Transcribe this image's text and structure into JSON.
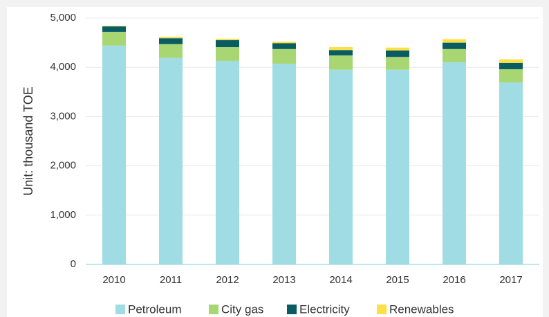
{
  "chart_data": {
    "type": "stacked_bar",
    "y_label": "Unit: thousand TOE",
    "categories": [
      "2010",
      "2011",
      "2012",
      "2013",
      "2014",
      "2015",
      "2016",
      "2017"
    ],
    "series": [
      {
        "name": "Petroleum",
        "color": "#9fdce4",
        "values": [
          4440,
          4190,
          4130,
          4070,
          3950,
          3950,
          4100,
          3690
        ]
      },
      {
        "name": "City gas",
        "color": "#a8d672",
        "values": [
          280,
          280,
          280,
          300,
          290,
          260,
          270,
          270
        ]
      },
      {
        "name": "Electricity",
        "color": "#0a5c63",
        "values": [
          110,
          120,
          140,
          120,
          110,
          130,
          130,
          130
        ]
      },
      {
        "name": "Renewables",
        "color": "#fde046",
        "values": [
          10,
          30,
          30,
          30,
          60,
          60,
          70,
          70
        ]
      }
    ],
    "ylim": [
      0,
      5000
    ],
    "yticks": [
      0,
      {
        "value": 1000,
        "label": "1,000"
      },
      {
        "value": 2000,
        "label": "2,000"
      },
      {
        "value": 3000,
        "label": "3,000"
      },
      {
        "value": 4000,
        "label": "4,000"
      },
      {
        "value": 5000,
        "label": "5,000"
      }
    ],
    "grid": true,
    "legend": "bottom"
  }
}
